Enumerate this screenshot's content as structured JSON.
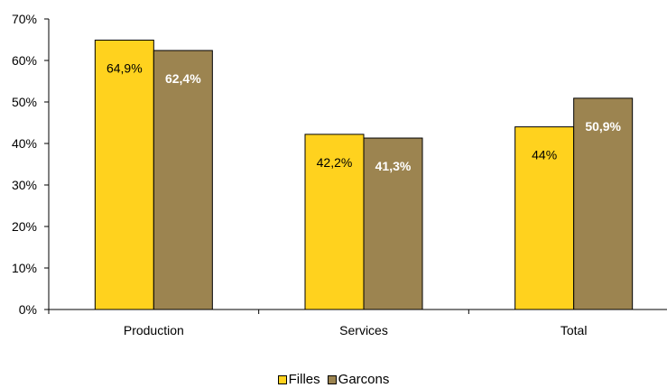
{
  "chart_data": {
    "type": "bar",
    "categories": [
      "Production",
      "Services",
      "Total"
    ],
    "series": [
      {
        "name": "Filles",
        "values": [
          64.9,
          42.2,
          44.0
        ],
        "labels": [
          "64,9%",
          "42,2%",
          "44%"
        ],
        "color": "#FFD21E",
        "label_color": "#000000",
        "label_bold": false
      },
      {
        "name": "Garcons",
        "values": [
          62.4,
          41.3,
          50.9
        ],
        "labels": [
          "62,4%",
          "41,3%",
          "50,9%"
        ],
        "color": "#9C8450",
        "label_color": "#FFFFFF",
        "label_bold": true
      }
    ],
    "ylim": [
      0,
      70
    ],
    "yticks": [
      "0%",
      "10%",
      "20%",
      "30%",
      "40%",
      "50%",
      "60%",
      "70%"
    ],
    "legend_position": "bottom"
  }
}
